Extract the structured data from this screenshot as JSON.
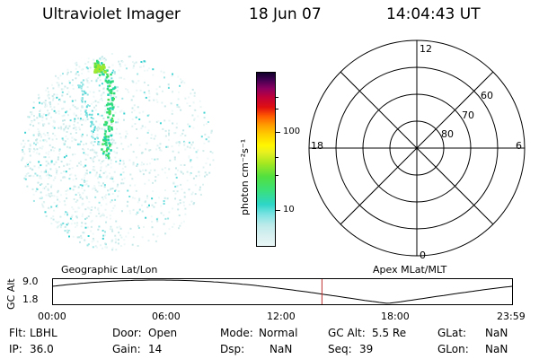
{
  "header": {
    "title": "Ultraviolet Imager",
    "date": "18 Jun 07",
    "time": "14:04:43 UT"
  },
  "colorbar": {
    "unit": "photon cm⁻²s⁻¹",
    "labels": [
      "100",
      "10"
    ]
  },
  "polar": {
    "mlt_labels": {
      "top": "12",
      "bottom": "0",
      "left": "18",
      "right": "6"
    },
    "lat_labels": [
      "60",
      "70",
      "80"
    ]
  },
  "altitude": {
    "left_title": "Geographic Lat/Lon",
    "right_title": "Apex MLat/MLT",
    "axis_label": "GC Alt",
    "y_max": "9.0",
    "y_min": "1.8",
    "time_labels": [
      "00:00",
      "06:00",
      "12:00",
      "18:00",
      "23:59"
    ],
    "marker_time_hours": 14.08
  },
  "info": {
    "filter_label": "Flt:",
    "filter_value": "LBHL",
    "door_label": "Door:",
    "door_value": "Open",
    "mode_label": "Mode:",
    "mode_value": "Normal",
    "gcalt_label": "GC Alt:",
    "gcalt_value": "5.5 Re",
    "glat_label": "GLat:",
    "glat_value": "NaN",
    "ip_label": "IP:",
    "ip_value": "36.0",
    "gain_label": "Gain:",
    "gain_value": "14",
    "dsp_label": "Dsp:",
    "dsp_value": "NaN",
    "seq_label": "Seq:",
    "seq_value": "39",
    "glon_label": "GLon:",
    "glon_value": "NaN"
  }
}
